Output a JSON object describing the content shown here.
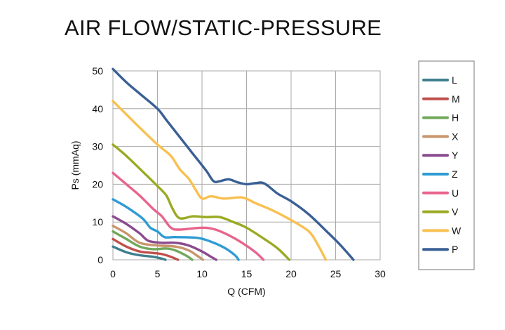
{
  "chart_data": {
    "type": "line",
    "title": "AIR FLOW/STATIC-PRESSURE",
    "xlabel": "Q (CFM)",
    "ylabel": "Ps (mmAq)",
    "xlim": [
      0,
      30
    ],
    "ylim": [
      0,
      50
    ],
    "xticks": [
      0,
      5,
      10,
      15,
      20,
      25,
      30
    ],
    "yticks": [
      0,
      10,
      20,
      30,
      40,
      50
    ],
    "grid": true,
    "legend": "right",
    "series": [
      {
        "name": "L",
        "color": "#3f7f8f",
        "points": [
          [
            0,
            3.5
          ],
          [
            1.5,
            2.0
          ],
          [
            3,
            1.2
          ],
          [
            4.5,
            0.8
          ],
          [
            5.5,
            0.3
          ],
          [
            5.9,
            0
          ]
        ]
      },
      {
        "name": "M",
        "color": "#c0504d",
        "points": [
          [
            0,
            5.5
          ],
          [
            1.5,
            3.5
          ],
          [
            3,
            2.2
          ],
          [
            4.5,
            1.8
          ],
          [
            5.5,
            1.5
          ],
          [
            6.5,
            0.8
          ],
          [
            7.3,
            0
          ]
        ]
      },
      {
        "name": "H",
        "color": "#70a85a",
        "points": [
          [
            0,
            7.5
          ],
          [
            1.5,
            5.5
          ],
          [
            3,
            3.5
          ],
          [
            4.5,
            2.8
          ],
          [
            6,
            3.0
          ],
          [
            7,
            2.5
          ],
          [
            8.3,
            1.0
          ],
          [
            8.9,
            0
          ]
        ]
      },
      {
        "name": "X",
        "color": "#c8956c",
        "points": [
          [
            0,
            9
          ],
          [
            1.5,
            7
          ],
          [
            3,
            4.5
          ],
          [
            5,
            3.8
          ],
          [
            7,
            3.5
          ],
          [
            8.5,
            2.5
          ],
          [
            9.5,
            1.0
          ],
          [
            10.1,
            0
          ]
        ]
      },
      {
        "name": "Y",
        "color": "#8a4a8f",
        "points": [
          [
            0,
            11.5
          ],
          [
            1.5,
            9.5
          ],
          [
            3,
            7
          ],
          [
            4,
            5
          ],
          [
            5.5,
            4.5
          ],
          [
            7,
            4.5
          ],
          [
            8.5,
            3.8
          ],
          [
            10,
            2.2
          ],
          [
            11,
            0.8
          ],
          [
            11.6,
            0
          ]
        ]
      },
      {
        "name": "Z",
        "color": "#2f9bd4",
        "points": [
          [
            0,
            16
          ],
          [
            1.5,
            14
          ],
          [
            3.3,
            11
          ],
          [
            4.2,
            8.5
          ],
          [
            5,
            7.5
          ],
          [
            5.8,
            6.0
          ],
          [
            7,
            6.0
          ],
          [
            9.5,
            5.8
          ],
          [
            11,
            4.8
          ],
          [
            12.5,
            3.2
          ],
          [
            13.7,
            1.2
          ],
          [
            14.1,
            0
          ]
        ]
      },
      {
        "name": "U",
        "color": "#e8648c",
        "points": [
          [
            0,
            23
          ],
          [
            1.5,
            20
          ],
          [
            3,
            17
          ],
          [
            4.5,
            13.5
          ],
          [
            5.5,
            11.5
          ],
          [
            6.5,
            8.5
          ],
          [
            7.5,
            8.0
          ],
          [
            10,
            8.5
          ],
          [
            11.5,
            8.0
          ],
          [
            13,
            6.5
          ],
          [
            14.5,
            4.5
          ],
          [
            16,
            2.0
          ],
          [
            16.9,
            0
          ]
        ]
      },
      {
        "name": "V",
        "color": "#9aaa22",
        "points": [
          [
            0,
            30.5
          ],
          [
            1.5,
            27.5
          ],
          [
            3.5,
            23
          ],
          [
            5,
            19.5
          ],
          [
            6,
            17
          ],
          [
            6.7,
            13.5
          ],
          [
            7.5,
            11
          ],
          [
            9,
            11.5
          ],
          [
            10.5,
            11.3
          ],
          [
            12,
            11.3
          ],
          [
            13.5,
            10
          ],
          [
            15,
            8.5
          ],
          [
            17,
            5.5
          ],
          [
            18.5,
            3.0
          ],
          [
            19.8,
            0
          ]
        ]
      },
      {
        "name": "W",
        "color": "#f8c050",
        "points": [
          [
            0,
            42
          ],
          [
            1.5,
            38.5
          ],
          [
            3,
            35
          ],
          [
            5,
            30.5
          ],
          [
            6.5,
            27.5
          ],
          [
            7.5,
            24
          ],
          [
            8.5,
            21.5
          ],
          [
            9.3,
            18.5
          ],
          [
            10,
            16.2
          ],
          [
            11,
            16.8
          ],
          [
            12.5,
            16.2
          ],
          [
            14.5,
            16.5
          ],
          [
            16,
            15
          ],
          [
            18,
            13
          ],
          [
            20,
            10.5
          ],
          [
            22,
            7.5
          ],
          [
            23,
            4.0
          ],
          [
            23.9,
            0
          ]
        ]
      },
      {
        "name": "P",
        "color": "#3a5f95",
        "points": [
          [
            0,
            50.5
          ],
          [
            1.5,
            47
          ],
          [
            3,
            44
          ],
          [
            5,
            40
          ],
          [
            6,
            37
          ],
          [
            7.5,
            32.5
          ],
          [
            9,
            28
          ],
          [
            10.5,
            23.5
          ],
          [
            11.3,
            20.8
          ],
          [
            12,
            20.8
          ],
          [
            13,
            21.3
          ],
          [
            14,
            20.5
          ],
          [
            15,
            20.0
          ],
          [
            16,
            20.3
          ],
          [
            17,
            20.2
          ],
          [
            18.5,
            17.5
          ],
          [
            20,
            15.5
          ],
          [
            22,
            12
          ],
          [
            24,
            7.5
          ],
          [
            25.5,
            4.0
          ],
          [
            27,
            0
          ]
        ]
      }
    ]
  }
}
